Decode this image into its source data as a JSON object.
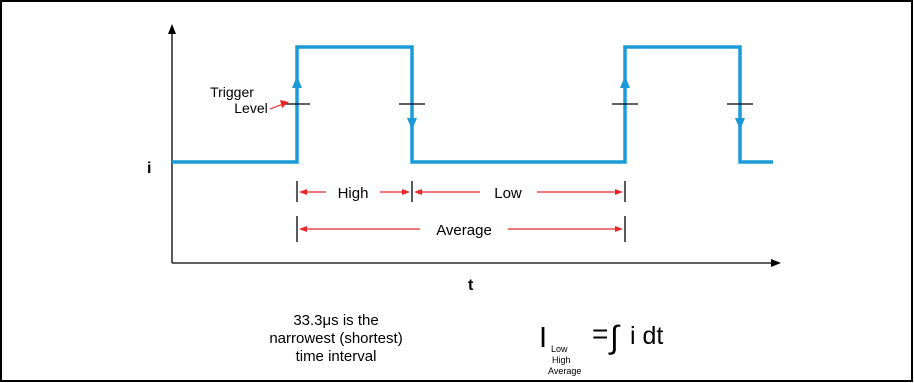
{
  "colors": {
    "waveform": "#1a9ad7",
    "annotation": "#e8262a",
    "axis": "#000000",
    "frame": "#000000"
  },
  "labels": {
    "trigger_line1": "Trigger",
    "trigger_line2": "Level",
    "y_axis": "i",
    "x_axis": "t",
    "high": "High",
    "low": "Low",
    "average": "Average"
  },
  "note": {
    "line1": "33.3μs is the",
    "line2": "narrowest (shortest)",
    "line3": "time interval"
  },
  "formula": {
    "symbol": "I",
    "sub_low": "Low",
    "sub_high": "High",
    "sub_average": "Average",
    "equals": "=",
    "integral": "∫",
    "integrand": "i dt"
  }
}
